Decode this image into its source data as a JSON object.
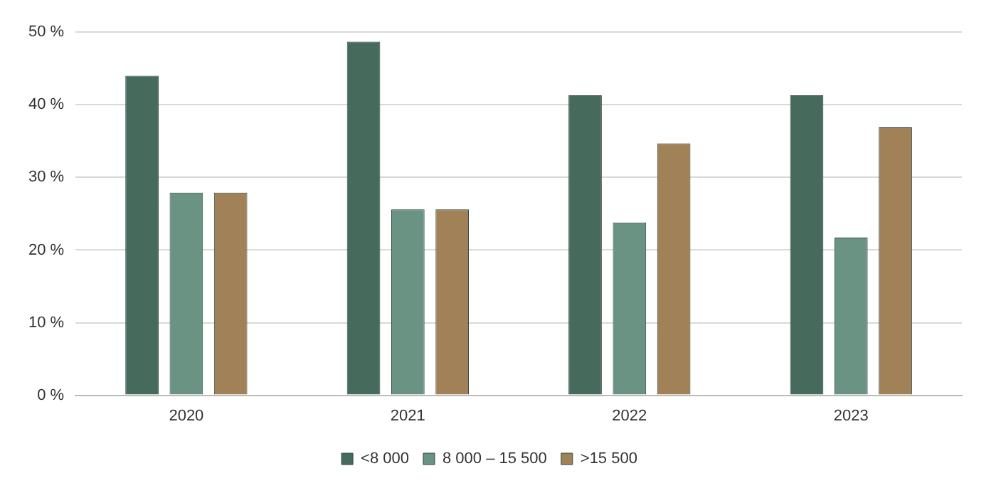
{
  "chart_data": {
    "type": "bar",
    "categories": [
      "2020",
      "2021",
      "2022",
      "2023"
    ],
    "series": [
      {
        "name": "<8 000",
        "color": "#466a5c",
        "values": [
          44,
          48.7,
          41.3,
          41.3
        ]
      },
      {
        "name": "8 000 – 15 500",
        "color": "#6a9384",
        "values": [
          27.9,
          25.6,
          23.8,
          21.7
        ]
      },
      {
        "name": ">15 500",
        "color": "#a08158",
        "values": [
          27.9,
          25.6,
          34.7,
          36.9
        ]
      }
    ],
    "ylim": [
      0,
      50
    ],
    "yticks": [
      {
        "value": 0,
        "label": "0 %"
      },
      {
        "value": 10,
        "label": "10 %"
      },
      {
        "value": 20,
        "label": "20 %"
      },
      {
        "value": 30,
        "label": "30 %"
      },
      {
        "value": 40,
        "label": "40 %"
      },
      {
        "value": 50,
        "label": "50 %"
      }
    ],
    "grid": "y",
    "legend": "bottom"
  }
}
